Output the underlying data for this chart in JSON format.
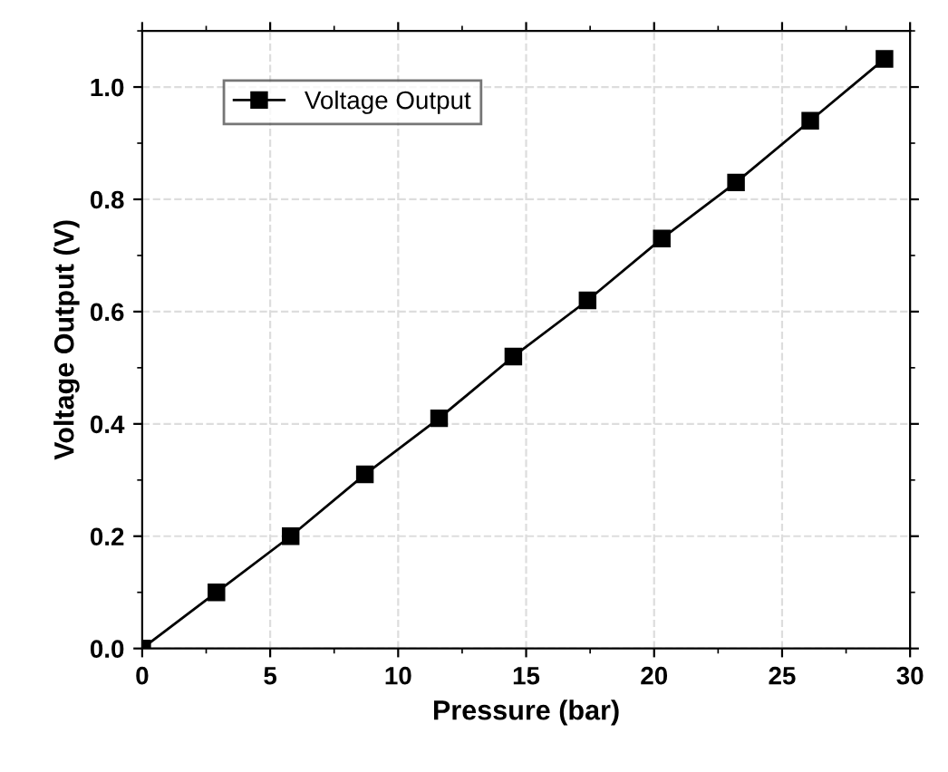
{
  "chart_data": {
    "type": "line",
    "xlabel": "Pressure (bar)",
    "ylabel": "Voltage Output (V)",
    "x": [
      0,
      2.9,
      5.8,
      8.7,
      11.6,
      14.5,
      17.4,
      20.3,
      23.2,
      26.1,
      29.0
    ],
    "series": [
      {
        "name": "Voltage Output",
        "color": "#000000",
        "values": [
          0,
          0.1,
          0.2,
          0.31,
          0.41,
          0.52,
          0.62,
          0.73,
          0.83,
          0.94,
          1.05
        ]
      }
    ],
    "xlim": [
      0,
      30
    ],
    "ylim": [
      0,
      1.1
    ],
    "xticks": [
      0,
      5,
      10,
      15,
      20,
      25,
      30
    ],
    "yticks": [
      {
        "value": 0,
        "label": "0.0"
      },
      0.2,
      0.4,
      0.6,
      0.8,
      {
        "value": 1,
        "label": "1.0"
      }
    ],
    "grid": true,
    "legend": "top left",
    "marker": "square",
    "line_style": "solid"
  }
}
